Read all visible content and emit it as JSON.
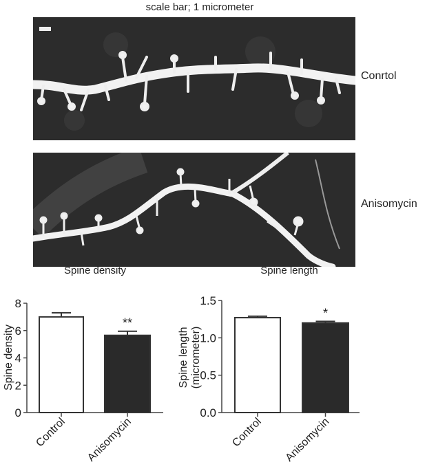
{
  "figure": {
    "scale_caption": "scale bar; 1 micrometer",
    "micrographs": [
      {
        "label": "Conrtol"
      },
      {
        "label": "Anisomycin"
      }
    ]
  },
  "chart_data": [
    {
      "type": "bar",
      "title": "Spine density",
      "ylabel": "Spine density",
      "xlabel": "",
      "categories": [
        "Control",
        "Anisomycin"
      ],
      "values": [
        7.0,
        5.65
      ],
      "error": [
        0.3,
        0.3
      ],
      "significance": [
        "",
        "**"
      ],
      "ylim": [
        0,
        8
      ],
      "yticks": [
        "0",
        "2",
        "4",
        "6",
        "8"
      ],
      "colors": [
        "#ffffff",
        "#2a2a2a"
      ],
      "grid": false
    },
    {
      "type": "bar",
      "title": "Spine length",
      "ylabel": "Spine length (micrometer)",
      "ylabel_lines": [
        "Spine length",
        "(micrometer)"
      ],
      "xlabel": "",
      "categories": [
        "Control",
        "Anisomycin"
      ],
      "values": [
        1.27,
        1.2
      ],
      "error": [
        0.02,
        0.02
      ],
      "significance": [
        "",
        "*"
      ],
      "ylim": [
        0,
        1.5
      ],
      "yticks": [
        "0.0",
        "0.5",
        "1.0",
        "1.5"
      ],
      "colors": [
        "#ffffff",
        "#2a2a2a"
      ],
      "grid": false
    }
  ]
}
